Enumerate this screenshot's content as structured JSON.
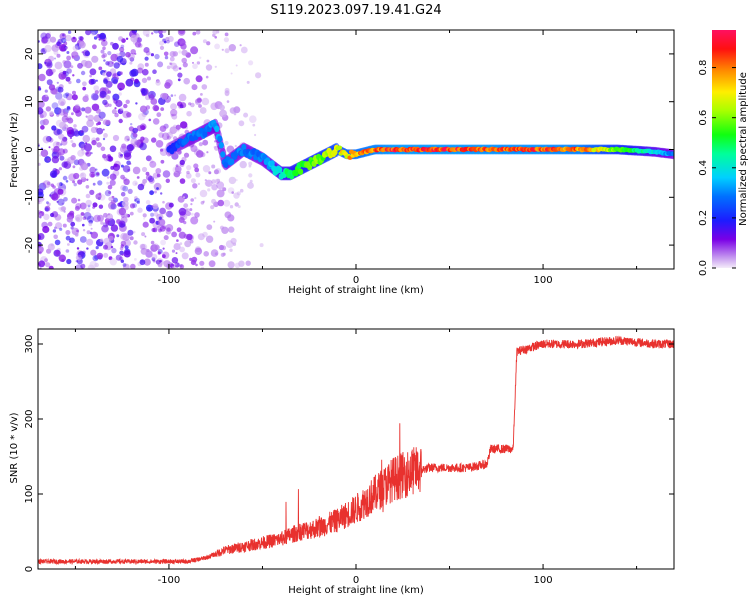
{
  "title": "S119.2023.097.19.41.G24",
  "chart_data": [
    {
      "type": "heatmap",
      "xlabel": "Height of straight line (km)",
      "ylabel": "Frequency (Hz)",
      "xlim": [
        -170,
        170
      ],
      "ylim": [
        -25,
        25
      ],
      "xticks": [
        -100,
        0,
        100
      ],
      "xtick_labels": [
        "-100",
        "0",
        "100"
      ],
      "yticks": [
        -20,
        -10,
        0,
        10,
        20
      ],
      "ytick_labels": [
        "-20",
        "-10",
        "0",
        "10",
        "20"
      ],
      "colorbar": {
        "label": "Normalized spectral amplitude",
        "range": [
          0,
          0.95
        ],
        "ticks": [
          0.0,
          0.2,
          0.4,
          0.6,
          0.8
        ],
        "tick_labels": [
          "0.0",
          "0.2",
          "0.4",
          "0.6",
          "0.8"
        ]
      },
      "ridge": {
        "x": [
          -100,
          -90,
          -80,
          -75,
          -70,
          -60,
          -50,
          -40,
          -35,
          -30,
          -20,
          -10,
          -5,
          0,
          10,
          20,
          40,
          60,
          80,
          100,
          120,
          140,
          160,
          170
        ],
        "freq": [
          0,
          2,
          4,
          5,
          -3,
          0,
          -2,
          -5,
          -5,
          -4,
          -2,
          0,
          -1,
          -1,
          0,
          0,
          0,
          0,
          0,
          0,
          0,
          0,
          -0.5,
          -1
        ],
        "amplitude": [
          0.2,
          0.3,
          0.3,
          0.35,
          0.3,
          0.3,
          0.3,
          0.45,
          0.5,
          0.55,
          0.6,
          0.7,
          0.75,
          0.8,
          0.85,
          0.9,
          0.9,
          0.9,
          0.88,
          0.88,
          0.85,
          0.6,
          0.4,
          0.3
        ]
      },
      "noise_region_x": [
        -170,
        -70
      ]
    },
    {
      "type": "line",
      "xlabel": "Height of straight line (km)",
      "ylabel": "SNR (10 * v/v)",
      "xlim": [
        -170,
        170
      ],
      "ylim": [
        0,
        320
      ],
      "xticks": [
        -100,
        0,
        100
      ],
      "xtick_labels": [
        "-100",
        "0",
        "100"
      ],
      "yticks": [
        0,
        100,
        200,
        300
      ],
      "ytick_labels": [
        "0",
        "100",
        "200",
        "300"
      ],
      "series": [
        {
          "color": "#e8312e",
          "x": [
            -170,
            -150,
            -130,
            -110,
            -90,
            -80,
            -70,
            -60,
            -50,
            -40,
            -30,
            -20,
            -10,
            0,
            10,
            20,
            30,
            40,
            50,
            60,
            70,
            72,
            80,
            84,
            86,
            100,
            120,
            140,
            160,
            170
          ],
          "y": [
            10,
            10,
            10,
            10,
            10,
            15,
            25,
            30,
            35,
            40,
            50,
            55,
            65,
            80,
            100,
            120,
            130,
            135,
            135,
            135,
            140,
            160,
            160,
            160,
            290,
            300,
            300,
            305,
            300,
            300
          ]
        }
      ]
    }
  ]
}
